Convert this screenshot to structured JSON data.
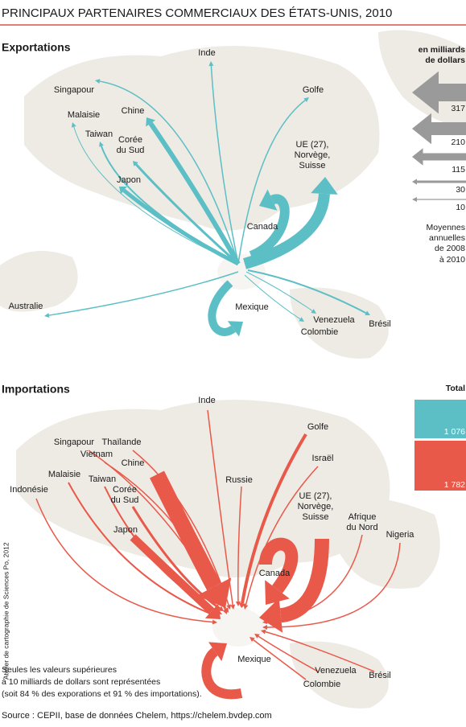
{
  "title": "PRINCIPAUX PARTENAIRES COMMERCIAUX DES ÉTATS-UNIS, 2010",
  "exports": {
    "heading": "Exportations",
    "labels": [
      [
        "Inde"
      ],
      [
        "Singapour"
      ],
      [
        "Golfe"
      ],
      [
        "Malaisie"
      ],
      [
        "Chine"
      ],
      [
        "Taiwan"
      ],
      [
        "Corée",
        "du Sud"
      ],
      [
        "Japon"
      ],
      [
        "UE (27),",
        "Norvège,",
        "Suisse"
      ],
      [
        "Canada"
      ],
      [
        "Mexique"
      ],
      [
        "Australie"
      ],
      [
        "Venezuela"
      ],
      [
        "Colombie"
      ],
      [
        "Brésil"
      ]
    ]
  },
  "imports": {
    "heading": "Importations",
    "labels": [
      [
        "Inde"
      ],
      [
        "Golfe"
      ],
      [
        "Singapour"
      ],
      [
        "Thaïlande"
      ],
      [
        "Vietnam"
      ],
      [
        "Chine"
      ],
      [
        "Israël"
      ],
      [
        "Malaisie"
      ],
      [
        "Taiwan"
      ],
      [
        "Russie"
      ],
      [
        "Indonésie"
      ],
      [
        "Corée",
        "du Sud"
      ],
      [
        "UE (27),",
        "Norvège,",
        "Suisse"
      ],
      [
        "Afrique",
        "du Nord"
      ],
      [
        "Nigeria"
      ],
      [
        "Japon"
      ],
      [
        "Canada"
      ],
      [
        "Mexique"
      ],
      [
        "Venezuela"
      ],
      [
        "Brésil"
      ],
      [
        "Colombie"
      ]
    ]
  },
  "legend": {
    "unit": [
      "en milliards",
      "de dollars"
    ],
    "values": [
      "317",
      "210",
      "115",
      "30",
      "10"
    ],
    "note": [
      "Moyennes",
      "annuelles",
      "de 2008",
      "à 2010"
    ]
  },
  "totals": {
    "heading": "Total",
    "exports": "1 076",
    "imports": "1 782"
  },
  "credit": "Atelier de cartographie de Sciences Po, 2012",
  "footnote": [
    "Seules les valeurs supérieures",
    "à 10 milliards de dollars sont représentées",
    "(soit 84 % des exporations et 91 % des importations)."
  ],
  "source": "Source : CEPII, base de données Chelem, https://chelem.bvdep.com"
}
